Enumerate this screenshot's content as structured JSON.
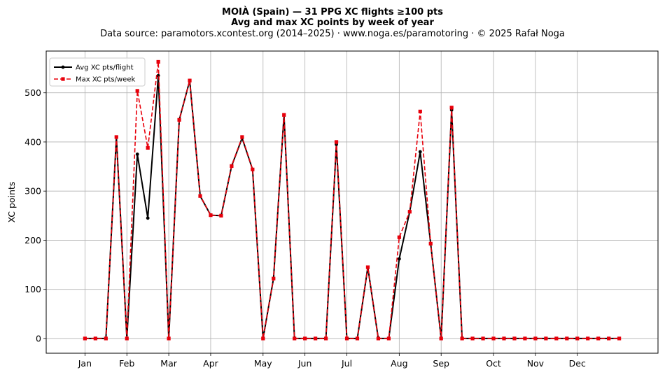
{
  "chart_data": {
    "type": "line",
    "title": "MOIÀ (Spain)  —  31 PPG XC flights ≥100 pts",
    "subtitle": "Avg and max XC points by week of year",
    "source": "Data source: paramotors.xcontest.org (2014–2025)  ·  www.noga.es/paramotoring  ·  © 2025 Rafał Noga",
    "xlabel": "",
    "ylabel": "XC points",
    "x": [
      1,
      2,
      3,
      4,
      5,
      6,
      7,
      8,
      9,
      10,
      11,
      12,
      13,
      14,
      15,
      16,
      17,
      18,
      19,
      20,
      21,
      22,
      23,
      24,
      25,
      26,
      27,
      28,
      29,
      30,
      31,
      32,
      33,
      34,
      35,
      36,
      37,
      38,
      39,
      40,
      41,
      42,
      43,
      44,
      45,
      46,
      47,
      48,
      49,
      50,
      51,
      52
    ],
    "xlim": [
      -2.7,
      55.7
    ],
    "ylim": [
      -30,
      585
    ],
    "xticks": [
      {
        "label": "Jan",
        "x": 1
      },
      {
        "label": "Feb",
        "x": 5
      },
      {
        "label": "Mar",
        "x": 9
      },
      {
        "label": "Apr",
        "x": 13
      },
      {
        "label": "May",
        "x": 18
      },
      {
        "label": "Jun",
        "x": 22
      },
      {
        "label": "Jul",
        "x": 26
      },
      {
        "label": "Aug",
        "x": 31
      },
      {
        "label": "Sep",
        "x": 35
      },
      {
        "label": "Oct",
        "x": 40
      },
      {
        "label": "Nov",
        "x": 44
      },
      {
        "label": "Dec",
        "x": 48
      }
    ],
    "yticks": [
      0,
      100,
      200,
      300,
      400,
      500
    ],
    "grid": true,
    "legend": "upper-left",
    "series": [
      {
        "name": "Avg XC pts/flight",
        "color": "#000000",
        "style": "solid",
        "marker": "circle",
        "values": [
          0,
          0,
          0,
          410,
          0,
          375,
          245,
          535,
          0,
          445,
          525,
          290,
          251,
          250,
          351,
          408,
          344,
          0,
          122,
          455,
          0,
          0,
          0,
          0,
          395,
          0,
          0,
          145,
          0,
          0,
          162,
          258,
          380,
          193,
          0,
          465,
          0,
          0,
          0,
          0,
          0,
          0,
          0,
          0,
          0,
          0,
          0,
          0,
          0,
          0,
          0,
          0
        ]
      },
      {
        "name": "Max XC pts/week",
        "color": "#e8000b",
        "style": "dashed",
        "marker": "square",
        "values": [
          0,
          0,
          0,
          410,
          0,
          504,
          388,
          563,
          0,
          445,
          525,
          290,
          251,
          250,
          351,
          410,
          344,
          0,
          122,
          455,
          0,
          0,
          0,
          0,
          400,
          0,
          0,
          145,
          0,
          0,
          206,
          258,
          462,
          193,
          0,
          470,
          0,
          0,
          0,
          0,
          0,
          0,
          0,
          0,
          0,
          0,
          0,
          0,
          0,
          0,
          0,
          0
        ]
      }
    ]
  }
}
